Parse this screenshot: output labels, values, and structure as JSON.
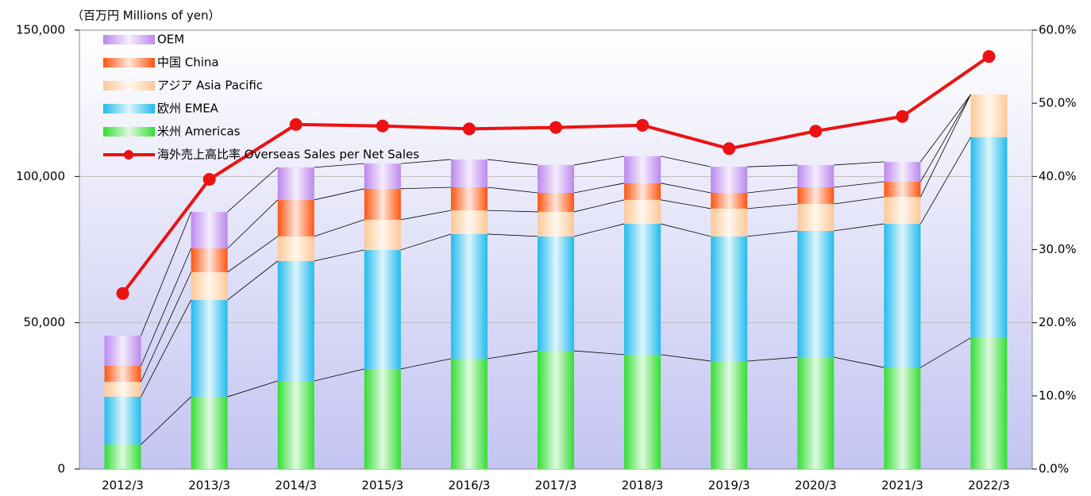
{
  "chart_data": {
    "type": "bar",
    "stacked": true,
    "ylabel": "（百万円  Millions of yen）",
    "categories": [
      "2012/3",
      "2013/3",
      "2014/3",
      "2015/3",
      "2016/3",
      "2017/3",
      "2018/3",
      "2019/3",
      "2020/3",
      "2021/3",
      "2022/3"
    ],
    "series": [
      {
        "name": "米州 Americas",
        "color": "#33dd33",
        "values": [
          8400,
          24700,
          30100,
          34200,
          37700,
          40400,
          39100,
          36900,
          38200,
          34700,
          44800
        ]
      },
      {
        "name": "欧州 EMEA",
        "color": "#22bbee",
        "values": [
          16300,
          33100,
          41000,
          40700,
          42600,
          39100,
          44700,
          42600,
          43200,
          49100,
          68600
        ]
      },
      {
        "name": "アジア Asia Pacific",
        "color": "#ffc896",
        "values": [
          5100,
          9500,
          8400,
          10300,
          8100,
          8400,
          8200,
          9500,
          9200,
          9200,
          14600
        ]
      },
      {
        "name": "中国 China",
        "color": "#ff5511",
        "values": [
          5500,
          8100,
          12500,
          10600,
          7900,
          6500,
          5700,
          5400,
          5700,
          5200,
          0
        ]
      },
      {
        "name": "OEM",
        "color": "#bb88ee",
        "values": [
          10300,
          12500,
          11100,
          8600,
          9500,
          9500,
          9200,
          8900,
          7600,
          6800,
          0
        ]
      },
      {
        "name": "海外売上高比率  Overseas Sales per Net Sales",
        "type": "line",
        "axis": "y2",
        "color": "#ee1111",
        "values": [
          24.0,
          39.6,
          47.1,
          46.9,
          46.5,
          46.7,
          47.0,
          43.8,
          46.2,
          48.2,
          56.4
        ]
      }
    ],
    "ylim": [
      0,
      150000
    ],
    "yticks": [
      0,
      {
        "value": 50000,
        "label": "50,000"
      },
      {
        "value": 100000,
        "label": "100,000"
      },
      {
        "value": 150000,
        "label": "150,000"
      }
    ],
    "y2lim": [
      0,
      60
    ],
    "y2ticks": [
      {
        "value": 0,
        "label": "0.0%"
      },
      {
        "value": 10,
        "label": "10.0%"
      },
      {
        "value": 20,
        "label": "20.0%"
      },
      {
        "value": 30,
        "label": "30.0%"
      },
      {
        "value": 40,
        "label": "40.0%"
      },
      {
        "value": 50,
        "label": "50.0%"
      },
      {
        "value": 60,
        "label": "60.0%"
      }
    ],
    "grid": true,
    "legend": "upper left"
  }
}
